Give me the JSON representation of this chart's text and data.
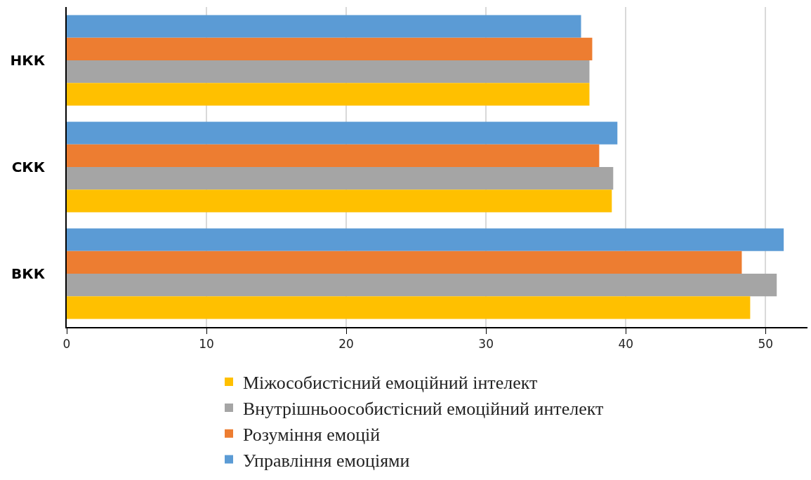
{
  "chart_data": {
    "type": "bar",
    "orientation": "horizontal",
    "categories": [
      "НКК",
      "СКК",
      "ВКК"
    ],
    "series": [
      {
        "name": "Міжособистісний емоційний інтелект",
        "color": "#ffc000",
        "values": [
          37.4,
          39.0,
          48.9
        ]
      },
      {
        "name": "Внутрішньоособистісний емоційний интелект",
        "color": "#a5a5a5",
        "values": [
          37.4,
          39.1,
          50.8
        ]
      },
      {
        "name": "Розуміння емоцій",
        "color": "#ed7d31",
        "values": [
          37.6,
          38.1,
          48.3
        ]
      },
      {
        "name": "Управління емоціями",
        "color": "#5b9bd5",
        "values": [
          36.8,
          39.4,
          51.3
        ]
      }
    ],
    "xlim": [
      0,
      53
    ],
    "xticks": [
      0,
      10,
      20,
      30,
      40,
      50
    ],
    "grid": "x",
    "legend": "bottom"
  }
}
